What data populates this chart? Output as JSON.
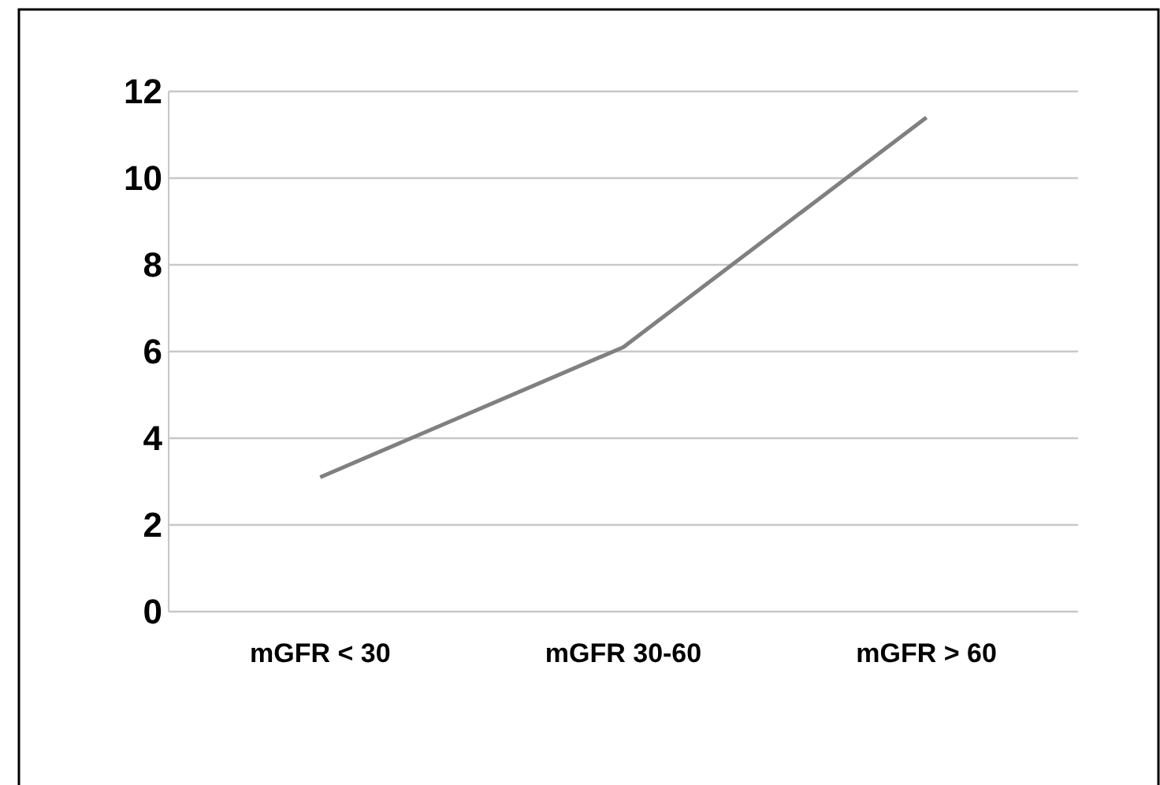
{
  "chart_data": {
    "type": "line",
    "categories": [
      "mGFR < 30",
      "mGFR 30-60",
      "mGFR > 60"
    ],
    "series": [
      {
        "color": "#808080",
        "values": [
          3.1,
          6.1,
          11.4
        ]
      }
    ],
    "ylim": [
      0,
      12
    ],
    "yticks": [
      0,
      2,
      4,
      6,
      8,
      10,
      12
    ],
    "grid": "y",
    "marker": "none",
    "line_style": "solid"
  }
}
